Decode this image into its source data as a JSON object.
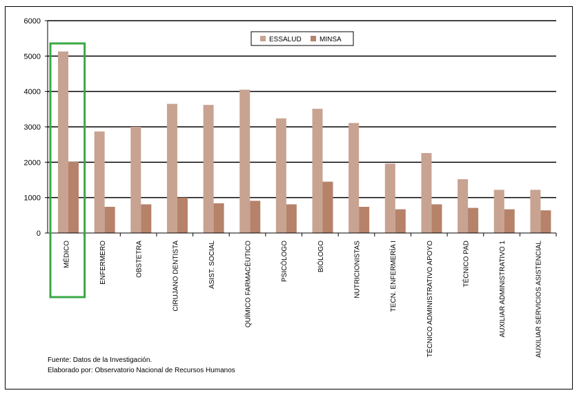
{
  "chart_data": {
    "type": "bar",
    "categories": [
      "MÉDICO",
      "ENFERMERO",
      "OBSTETRA",
      "CIRUJANO DENTISTA",
      "ASIST. SOCIAL",
      "QUÍMICO FARMACÉUTICO",
      "PSICÓLOGO",
      "BIÓLOGO",
      "NUTRICIONISTAS",
      "TECN. ENFERMERÍA I",
      "TÉCNICO ADMINISTRATIVO APOYO",
      "TÉCNICO PAD",
      "AUXILIAR ADMINISTRATIVO 1",
      "AUXILIAR SERVICIOS ASISTENCIAL"
    ],
    "series": [
      {
        "name": "ESSALUD",
        "color": "#c8a392",
        "values": [
          5130,
          2870,
          3000,
          3650,
          3620,
          4050,
          3240,
          3510,
          3110,
          1960,
          2260,
          1520,
          1220,
          1220
        ]
      },
      {
        "name": "MINSA",
        "color": "#b6826a",
        "values": [
          2010,
          740,
          810,
          1000,
          840,
          910,
          810,
          1450,
          740,
          670,
          810,
          710,
          670,
          640
        ]
      }
    ],
    "ylim": [
      0,
      6000
    ],
    "yticks": [
      "0",
      "1000",
      "2000",
      "3000",
      "4000",
      "5000",
      "6000"
    ],
    "grid": true,
    "legend_position": "top-center",
    "highlight_category": "MÉDICO",
    "highlight_color": "#3aa845"
  },
  "source": {
    "line1": "Fuente: Datos de la Investigación.",
    "line2": "Elaborado por: Observatorio Nacional de Recursos Humanos"
  }
}
